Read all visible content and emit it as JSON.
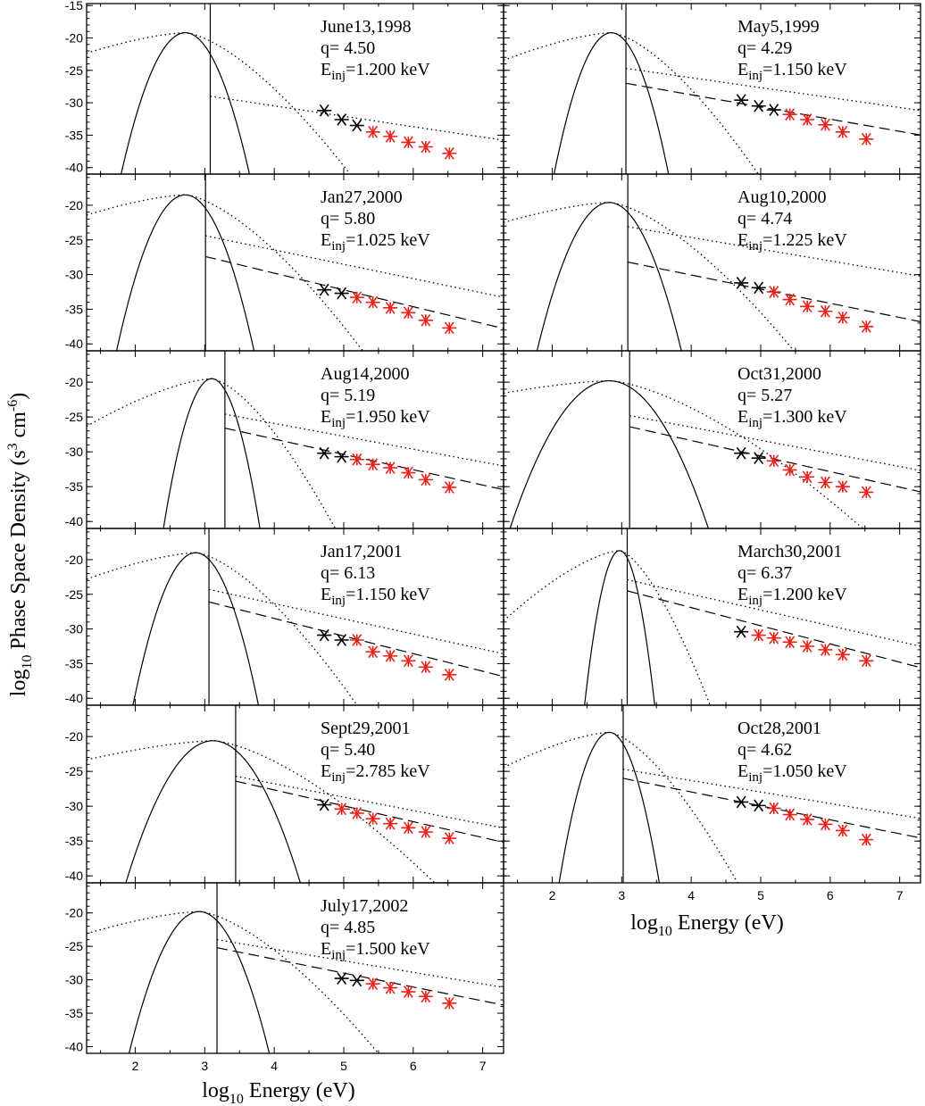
{
  "figure": {
    "ylabel_main": "log",
    "ylabel_sub": "10",
    "ylabel_rest": " Phase Space Density (s",
    "ylabel_sup1": "3",
    "ylabel_mid": " cm",
    "ylabel_sup2": "-6",
    "ylabel_close": ")",
    "xlabel_main": "log",
    "xlabel_sub": "10",
    "xlabel_rest": " Energy (eV)"
  },
  "chart_data": [
    {
      "type": "line",
      "title": "June13,1998",
      "q_text": "q= 4.50",
      "e_prefix": "E",
      "e_sub": "inj",
      "e_value": "=1.200 keV",
      "q": 4.5,
      "e_inj_kev": 1.2,
      "peak_x": 2.72,
      "peak_y": -19.2,
      "width": 0.37,
      "dot_anchor_y": -29.0,
      "dashed": false,
      "dashed_offset": 0,
      "points_x": [
        4.72,
        4.97,
        5.19,
        5.42,
        5.67,
        5.93,
        6.18,
        6.52
      ],
      "points_y": [
        -31.2,
        -32.6,
        -33.5,
        -34.5,
        -35.2,
        -36.1,
        -36.8,
        -37.8
      ],
      "black_count": 3,
      "yticks": [
        -15,
        -20,
        -25,
        -30,
        -35,
        -40
      ],
      "xticks": [],
      "ylim": [
        -41,
        -14.7
      ],
      "xlim": [
        1.3,
        7.3
      ]
    },
    {
      "type": "line",
      "title": "May5,1999",
      "q_text": "q= 4.29",
      "e_prefix": "E",
      "e_sub": "inj",
      "e_value": "=1.150 keV",
      "q": 4.29,
      "e_inj_kev": 1.15,
      "peak_x": 2.85,
      "peak_y": -19.2,
      "width": 0.33,
      "dot_anchor_y": -24.7,
      "dashed": true,
      "dashed_offset": -2.3,
      "points_x": [
        4.72,
        4.97,
        5.19,
        5.42,
        5.67,
        5.93,
        6.18,
        6.52
      ],
      "points_y": [
        -29.6,
        -30.5,
        -31.1,
        -31.8,
        -32.6,
        -33.4,
        -34.5,
        -35.6
      ],
      "black_count": 3,
      "yticks": [],
      "xticks": [],
      "ylim": [
        -41,
        -14.7
      ],
      "xlim": [
        1.3,
        7.3
      ]
    },
    {
      "type": "line",
      "title": "Jan27,2000",
      "q_text": "q= 5.80",
      "e_prefix": "E",
      "e_sub": "inj",
      "e_value": "=1.025 keV",
      "q": 5.8,
      "e_inj_kev": 1.025,
      "peak_x": 2.72,
      "peak_y": -18.5,
      "width": 0.39,
      "dot_anchor_y": -24.4,
      "dashed": true,
      "dashed_offset": -3.0,
      "points_x": [
        4.72,
        4.97,
        5.19,
        5.42,
        5.67,
        5.93,
        6.18,
        6.52
      ],
      "points_y": [
        -32.2,
        -32.7,
        -33.3,
        -34.0,
        -34.8,
        -35.5,
        -36.6,
        -37.7
      ],
      "black_count": 2,
      "yticks": [
        -20,
        -25,
        -30,
        -35,
        -40
      ],
      "xticks": [],
      "ylim": [
        -41,
        -15.5
      ],
      "xlim": [
        1.3,
        7.3
      ]
    },
    {
      "type": "line",
      "title": "Aug10,2000",
      "q_text": "q= 4.74",
      "e_prefix": "E",
      "e_sub": "inj",
      "e_value": "=1.225 keV",
      "q": 4.74,
      "e_inj_kev": 1.225,
      "peak_x": 2.82,
      "peak_y": -19.6,
      "width": 0.42,
      "dot_anchor_y": -23.1,
      "dashed": true,
      "dashed_offset": -5.1,
      "points_x": [
        4.72,
        4.97,
        5.19,
        5.42,
        5.67,
        5.93,
        6.18,
        6.52
      ],
      "points_y": [
        -31.2,
        -31.9,
        -32.5,
        -33.6,
        -34.6,
        -35.3,
        -36.2,
        -37.5
      ],
      "black_count": 2,
      "yticks": [],
      "xticks": [],
      "ylim": [
        -41,
        -15.5
      ],
      "xlim": [
        1.3,
        7.3
      ]
    },
    {
      "type": "line",
      "title": "Aug14,2000",
      "q_text": "q= 5.19",
      "e_prefix": "E",
      "e_sub": "inj",
      "e_value": "=1.950 keV",
      "q": 5.19,
      "e_inj_kev": 1.95,
      "peak_x": 3.1,
      "peak_y": -19.5,
      "width": 0.28,
      "dot_anchor_y": -24.6,
      "dashed": true,
      "dashed_offset": -2.0,
      "points_x": [
        4.72,
        4.97,
        5.19,
        5.42,
        5.67,
        5.93,
        6.18,
        6.52
      ],
      "points_y": [
        -30.2,
        -30.7,
        -31.1,
        -31.8,
        -32.3,
        -33.0,
        -34.0,
        -35.1
      ],
      "black_count": 2,
      "yticks": [
        -20,
        -25,
        -30,
        -35,
        -40
      ],
      "xticks": [],
      "ylim": [
        -41,
        -15.5
      ],
      "xlim": [
        1.3,
        7.3
      ]
    },
    {
      "type": "line",
      "title": "Oct31,2000",
      "q_text": "q= 5.27",
      "e_prefix": "E",
      "e_sub": "inj",
      "e_value": "=1.300 keV",
      "q": 5.27,
      "e_inj_kev": 1.3,
      "peak_x": 2.82,
      "peak_y": -19.8,
      "width": 0.58,
      "dot_anchor_y": -24.8,
      "dashed": true,
      "dashed_offset": -1.6,
      "points_x": [
        4.72,
        4.97,
        5.19,
        5.42,
        5.67,
        5.93,
        6.18,
        6.52
      ],
      "points_y": [
        -30.2,
        -30.9,
        -31.3,
        -32.6,
        -33.6,
        -34.4,
        -35.0,
        -35.8
      ],
      "black_count": 2,
      "yticks": [],
      "xticks": [],
      "ylim": [
        -41,
        -15.5
      ],
      "xlim": [
        1.3,
        7.3
      ]
    },
    {
      "type": "line",
      "title": "Jan17,2001",
      "q_text": "q= 6.13",
      "e_prefix": "E",
      "e_sub": "inj",
      "e_value": "=1.150 keV",
      "q": 6.13,
      "e_inj_kev": 1.15,
      "peak_x": 2.87,
      "peak_y": -19.0,
      "width": 0.36,
      "dot_anchor_y": -24.3,
      "dashed": true,
      "dashed_offset": -1.8,
      "points_x": [
        4.72,
        4.97,
        5.19,
        5.42,
        5.67,
        5.93,
        6.18,
        6.52
      ],
      "points_y": [
        -30.9,
        -31.6,
        -31.6,
        -33.3,
        -33.9,
        -34.6,
        -35.5,
        -36.6
      ],
      "black_count": 2,
      "yticks": [
        -20,
        -25,
        -30,
        -35,
        -40
      ],
      "xticks": [],
      "ylim": [
        -41,
        -15.5
      ],
      "xlim": [
        1.3,
        7.3
      ]
    },
    {
      "type": "line",
      "title": "March30,2001",
      "q_text": "q= 6.37",
      "e_prefix": "E",
      "e_sub": "inj",
      "e_value": "=1.200 keV",
      "q": 6.37,
      "e_inj_kev": 1.2,
      "peak_x": 2.97,
      "peak_y": -18.7,
      "width": 0.2,
      "dot_anchor_y": -22.9,
      "dashed": true,
      "dashed_offset": -1.6,
      "points_x": [
        4.72,
        4.97,
        5.19,
        5.42,
        5.67,
        5.93,
        6.18,
        6.52
      ],
      "points_y": [
        -30.4,
        -30.9,
        -31.3,
        -31.9,
        -32.5,
        -33.0,
        -33.7,
        -34.6
      ],
      "black_count": 1,
      "yticks": [],
      "xticks": [],
      "ylim": [
        -41,
        -15.5
      ],
      "xlim": [
        1.3,
        7.3
      ]
    },
    {
      "type": "line",
      "title": "Sept29,2001",
      "q_text": "q= 5.40",
      "e_prefix": "E",
      "e_sub": "inj",
      "e_value": "=2.785 keV",
      "q": 5.4,
      "e_inj_kev": 2.785,
      "peak_x": 3.12,
      "peak_y": -20.6,
      "width": 0.52,
      "dot_anchor_y": -25.7,
      "dashed": true,
      "dashed_offset": -0.7,
      "points_x": [
        4.72,
        4.97,
        5.19,
        5.42,
        5.67,
        5.93,
        6.18,
        6.52
      ],
      "points_y": [
        -29.8,
        -30.4,
        -31.0,
        -31.8,
        -32.5,
        -33.1,
        -33.7,
        -34.6
      ],
      "black_count": 1,
      "yticks": [
        -20,
        -25,
        -30,
        -35,
        -40
      ],
      "xticks": [],
      "ylim": [
        -41,
        -15.5
      ],
      "xlim": [
        1.3,
        7.3
      ]
    },
    {
      "type": "line",
      "title": "Oct28,2001",
      "q_text": "q= 4.62",
      "e_prefix": "E",
      "e_sub": "inj",
      "e_value": "=1.050 keV",
      "q": 4.62,
      "e_inj_kev": 1.05,
      "peak_x": 2.82,
      "peak_y": -19.4,
      "width": 0.29,
      "dot_anchor_y": -24.7,
      "dashed": true,
      "dashed_offset": -1.3,
      "points_x": [
        4.72,
        4.97,
        5.19,
        5.42,
        5.67,
        5.93,
        6.18,
        6.52
      ],
      "points_y": [
        -29.4,
        -29.9,
        -30.3,
        -31.2,
        -31.9,
        -32.6,
        -33.5,
        -34.8
      ],
      "black_count": 2,
      "yticks": [],
      "xticks": [
        2,
        3,
        4,
        5,
        6,
        7
      ],
      "ylim": [
        -41,
        -15.5
      ],
      "xlim": [
        1.3,
        7.3
      ]
    },
    {
      "type": "line",
      "title": "July17,2002",
      "q_text": "q= 4.85",
      "e_prefix": "E",
      "e_sub": "inj",
      "e_value": "=1.500 keV",
      "q": 4.85,
      "e_inj_kev": 1.5,
      "peak_x": 2.92,
      "peak_y": -19.8,
      "width": 0.41,
      "dot_anchor_y": -24.0,
      "dashed": true,
      "dashed_offset": -1.2,
      "points_x": [
        4.97,
        5.19,
        5.42,
        5.67,
        5.93,
        6.18,
        6.52
      ],
      "points_y": [
        -29.8,
        -30.1,
        -30.6,
        -31.2,
        -31.8,
        -32.5,
        -33.5
      ],
      "black_count": 2,
      "yticks": [
        -20,
        -25,
        -30,
        -35,
        -40
      ],
      "xticks": [
        2,
        3,
        4,
        5,
        6,
        7
      ],
      "ylim": [
        -41,
        -15.5
      ],
      "xlim": [
        1.3,
        7.3
      ]
    }
  ]
}
